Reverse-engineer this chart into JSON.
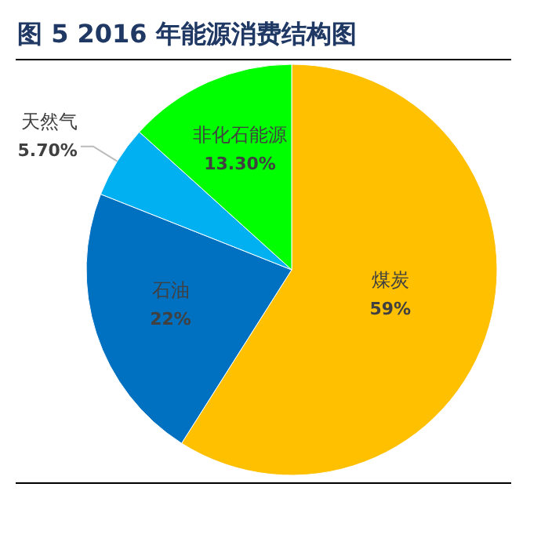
{
  "chart_data": {
    "type": "pie",
    "title": "图 5 2016 年能源消费结构图",
    "categories": [
      "煤炭",
      "石油",
      "天然气",
      "非化石能源"
    ],
    "values": [
      59,
      22,
      5.7,
      13.3
    ],
    "value_labels": [
      "59%",
      "22%",
      "5.70%",
      "13.30%"
    ],
    "colors": [
      "#ffc000",
      "#0070c0",
      "#00b0f0",
      "#00ff00"
    ]
  }
}
